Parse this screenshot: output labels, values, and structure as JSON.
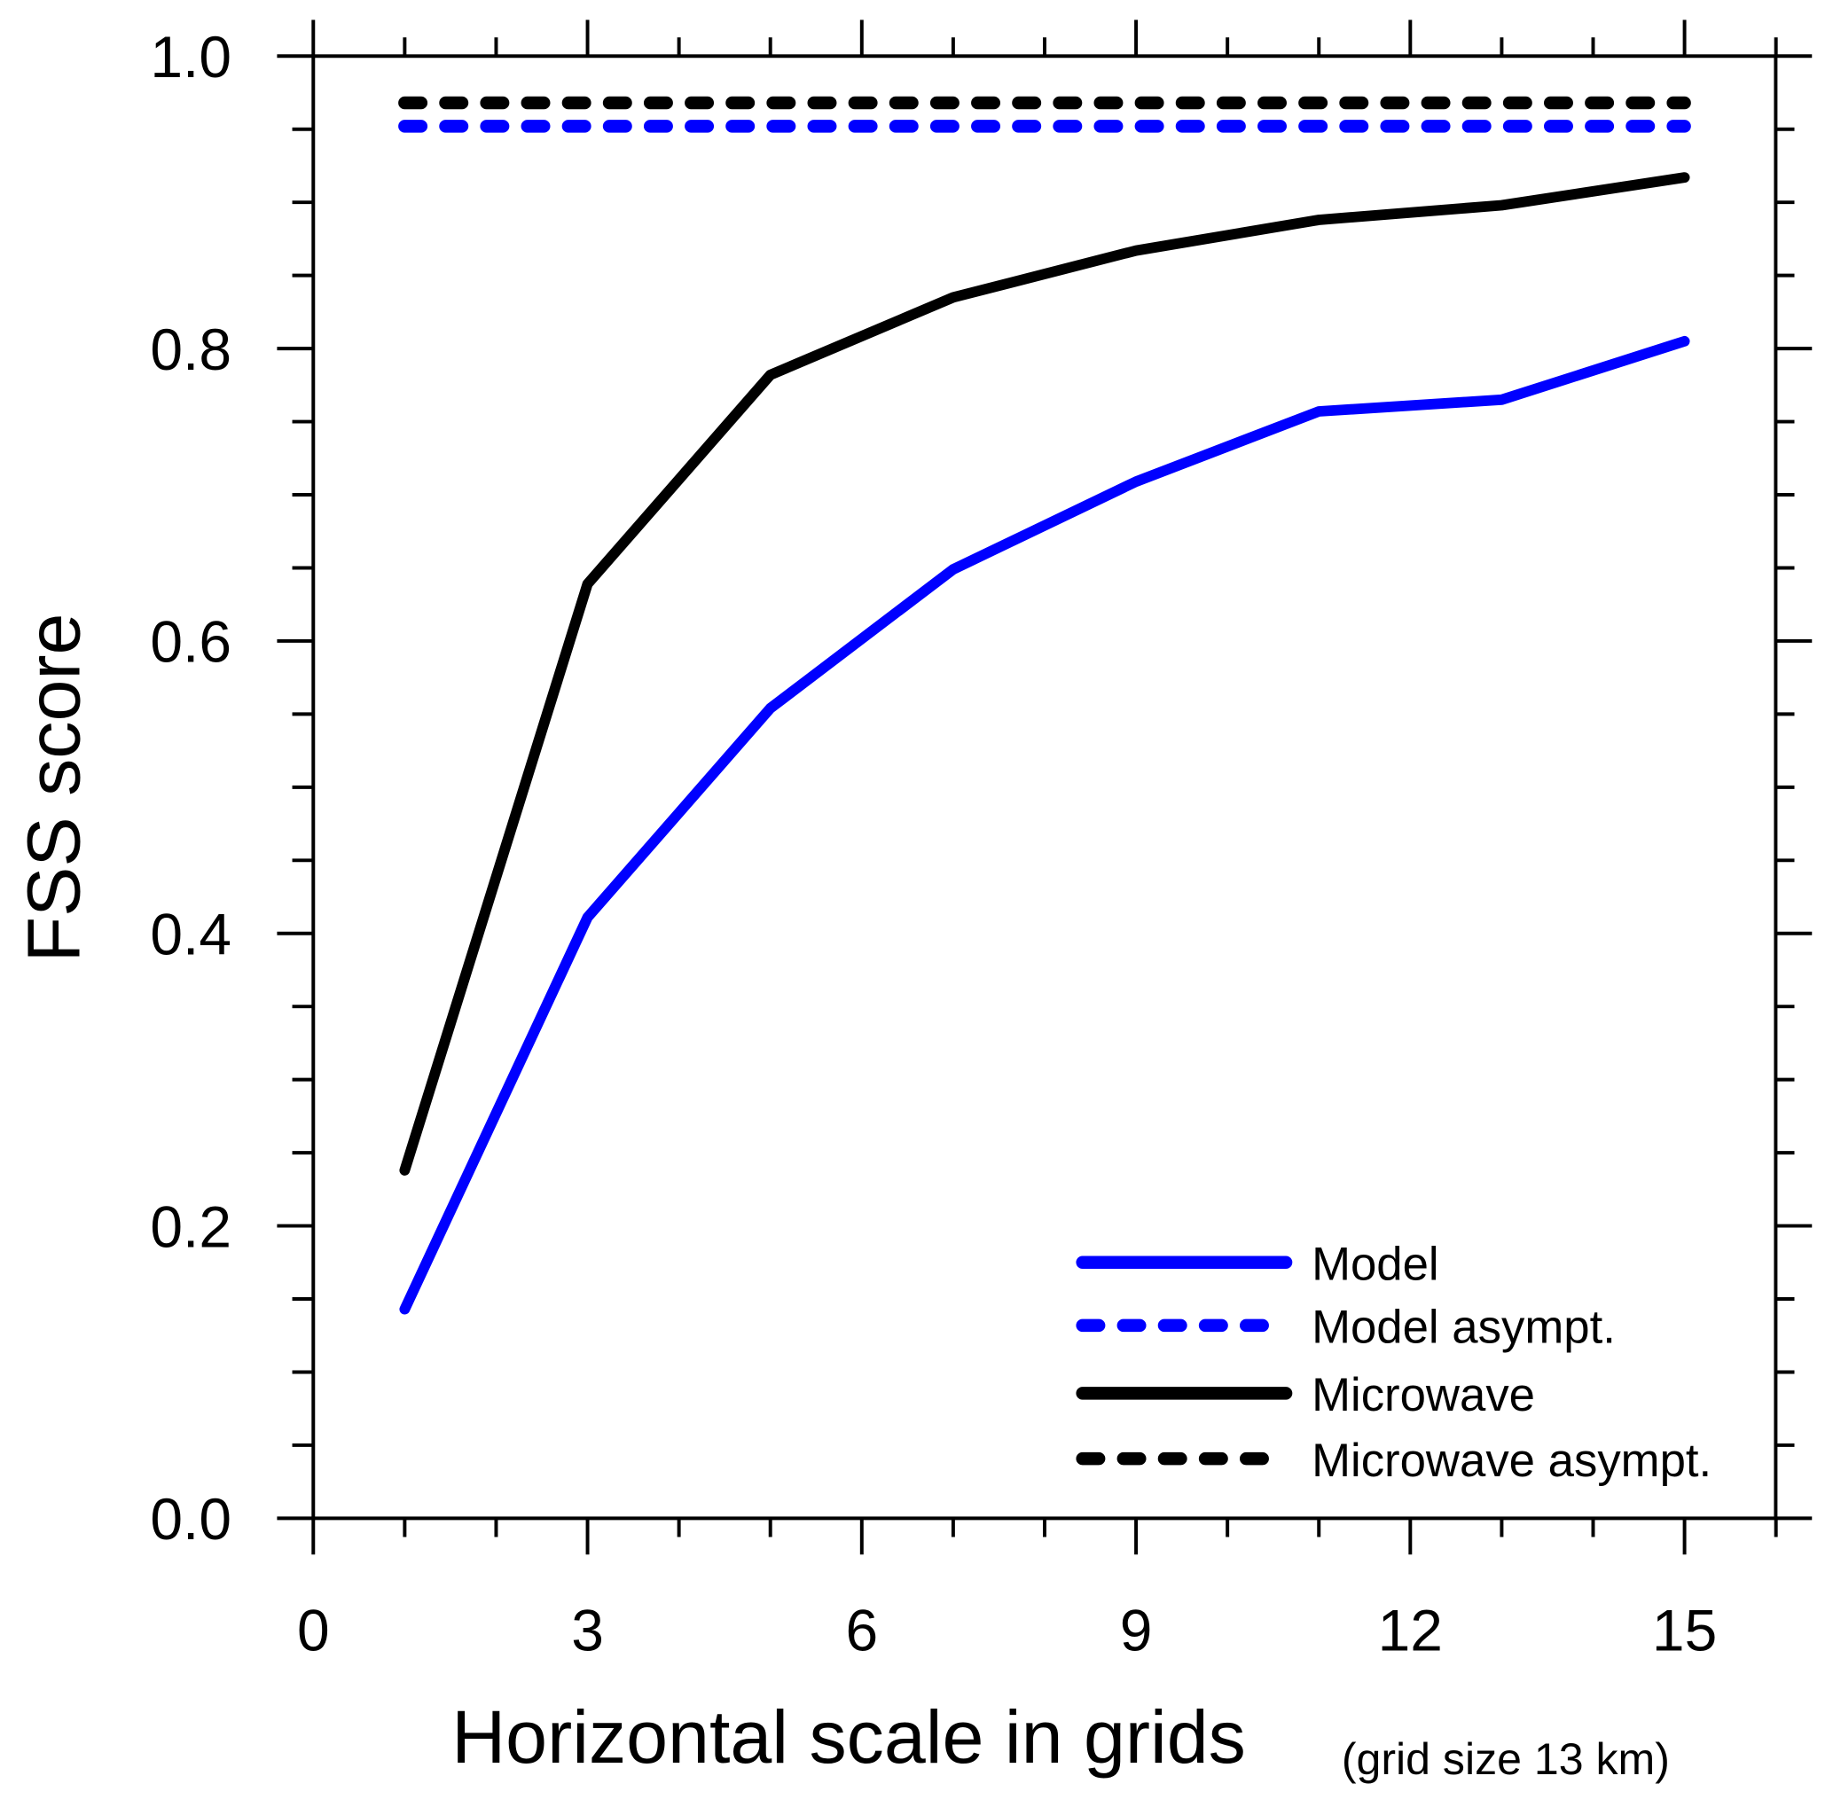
{
  "chart_data": {
    "type": "line",
    "title": "",
    "xlabel": "Horizontal scale in grids",
    "xlabel_note": "(grid size 13 km)",
    "ylabel": "FSS score",
    "xlim": [
      0,
      16
    ],
    "ylim": [
      0,
      1.0
    ],
    "xticks": [
      0,
      3,
      6,
      9,
      12,
      15
    ],
    "xtick_labels": [
      "0",
      "3",
      "6",
      "9",
      "12",
      "15"
    ],
    "yticks": [
      0,
      0.2,
      0.4,
      0.6,
      0.8,
      1.0
    ],
    "ytick_labels": [
      "0.0",
      "0.2",
      "0.4",
      "0.6",
      "0.8",
      "1.0"
    ],
    "grid": false,
    "legend_position": "bottom-right",
    "x": [
      1,
      3,
      5,
      7,
      9,
      11,
      13,
      15
    ],
    "series": [
      {
        "name": "Model",
        "color": "#0000ff",
        "dashed": false,
        "values": [
          0.143,
          0.411,
          0.554,
          0.649,
          0.709,
          0.757,
          0.765,
          0.805
        ]
      },
      {
        "name": "Model asympt.",
        "color": "#0000ff",
        "dashed": true,
        "values": [
          0.952,
          0.952,
          0.952,
          0.952,
          0.952,
          0.952,
          0.952,
          0.952
        ]
      },
      {
        "name": "Microwave",
        "color": "#000000",
        "dashed": false,
        "values": [
          0.238,
          0.639,
          0.782,
          0.835,
          0.867,
          0.888,
          0.898,
          0.917
        ]
      },
      {
        "name": "Microwave asympt.",
        "color": "#000000",
        "dashed": true,
        "values": [
          0.968,
          0.968,
          0.968,
          0.968,
          0.968,
          0.968,
          0.968,
          0.968
        ]
      }
    ]
  }
}
